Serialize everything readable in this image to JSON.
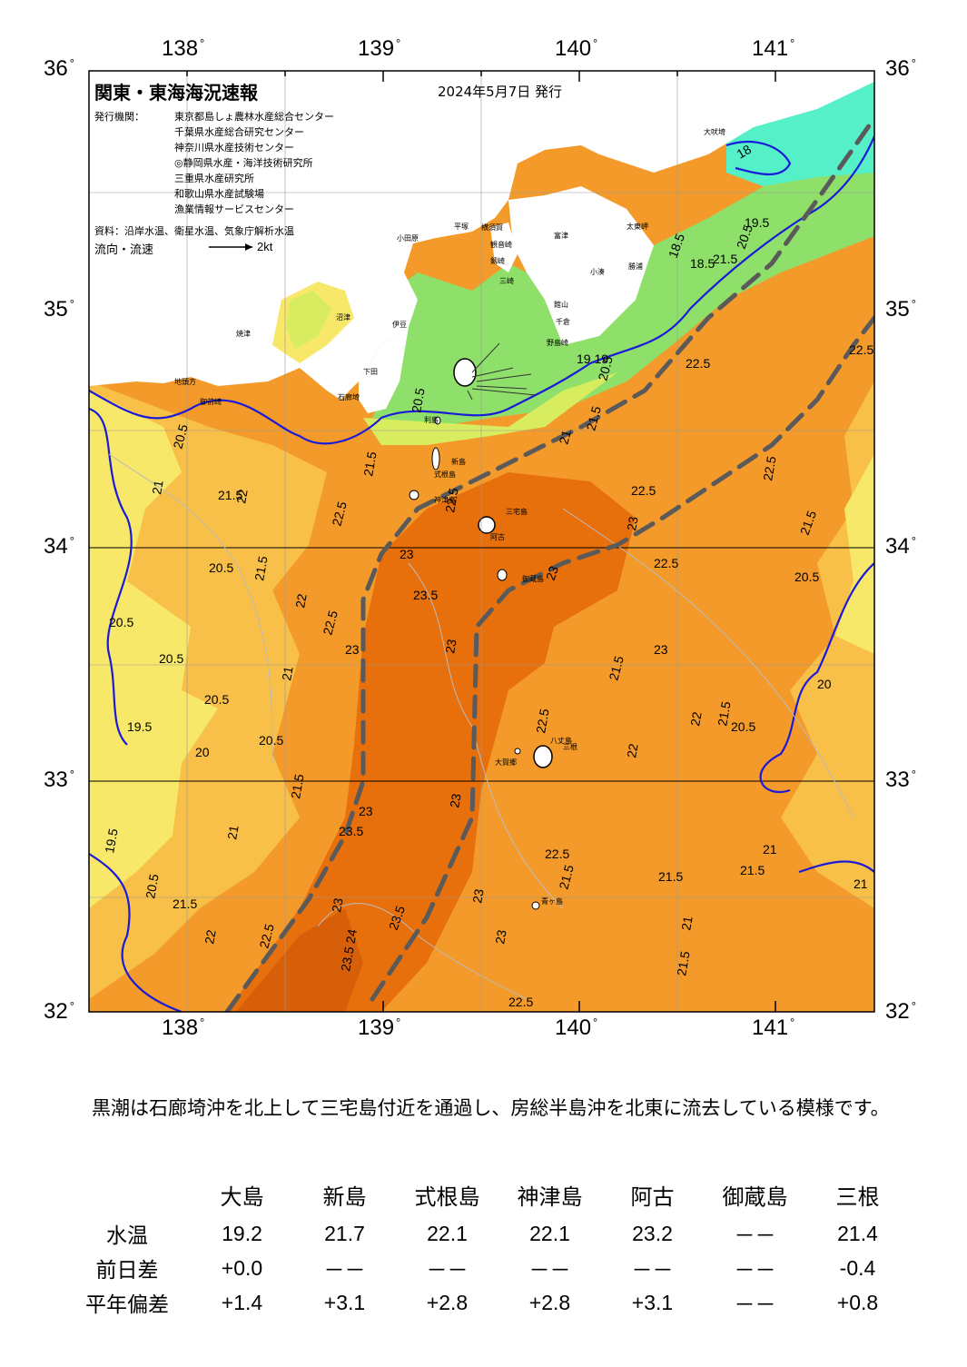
{
  "map": {
    "title": "関東・東海海況速報",
    "date": "2024年5月7日 発行",
    "publisher_label": "発行機関：",
    "publishers": [
      "東京都島しょ農林水産総合センター",
      "千葉県水産総合研究センター",
      "神奈川県水産技術センター",
      "◎静岡県水産・海洋技術研究所",
      "三重県水産研究所",
      "和歌山県水産試験場",
      "漁業情報サービスセンター"
    ],
    "source": "資料：沿岸水温、衛星水温、気象庁解析水温",
    "flow_label": "流向・流速",
    "flow_scale": "2kt",
    "lon_ticks": [
      "138",
      "139",
      "140",
      "141"
    ],
    "lat_ticks": [
      "36",
      "35",
      "34",
      "33",
      "32"
    ],
    "temperature_labels": [
      "20.5",
      "21",
      "21.5",
      "22",
      "22.5",
      "23",
      "23.5",
      "24",
      "19.5",
      "20",
      "19",
      "18.5",
      "18"
    ],
    "place_names": [
      "大吠埼",
      "太東岬",
      "勝浦",
      "小湊",
      "野島崎",
      "千倉",
      "館山",
      "富津",
      "横須賀",
      "観音崎",
      "剱崎",
      "三崎",
      "平塚",
      "小田原",
      "石廊埼",
      "稲取",
      "下田",
      "伊豆",
      "沼津",
      "焼津",
      "御前崎",
      "地頭方",
      "大島",
      "利島",
      "新島",
      "式根島",
      "神津島",
      "三宅島",
      "阿古",
      "御蔵島",
      "八丈島",
      "三根",
      "大賀郷",
      "青ヶ島"
    ],
    "colors": {
      "kuroshio_core": "#e8700c",
      "warm": "#f39a2a",
      "mid": "#f8c048",
      "cool": "#f7e86a",
      "coastal": "#8ee06a",
      "cold": "#56f0c8",
      "land": "#ffffff",
      "isotherm_main": "#1a1ad8",
      "axis_line": "#5a5a5a"
    }
  },
  "summary": "　黒潮は石廊埼沖を北上して三宅島付近を通過し、房総半島沖を北東に流去している模様です。",
  "table": {
    "stations": [
      "大島",
      "新島",
      "式根島",
      "神津島",
      "阿古",
      "御蔵島",
      "三根"
    ],
    "rows": [
      {
        "label": "水温",
        "values": [
          "19.2",
          "21.7",
          "22.1",
          "22.1",
          "23.2",
          "－－",
          "21.4"
        ]
      },
      {
        "label": "前日差",
        "values": [
          "+0.0",
          "－－",
          "－－",
          "－－",
          "－－",
          "－－",
          "-0.4"
        ]
      },
      {
        "label": "平年偏差",
        "values": [
          "+1.4",
          "+3.1",
          "+2.8",
          "+2.8",
          "+3.1",
          "－－",
          "+0.8"
        ]
      }
    ]
  }
}
